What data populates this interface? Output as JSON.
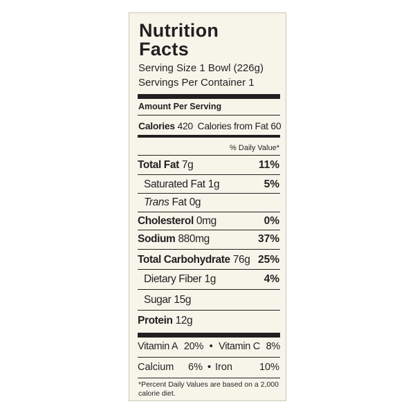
{
  "title_lines": [
    "Nutrition",
    "Facts"
  ],
  "serving_size": {
    "label": "Serving Size",
    "value": "1 Bowl (226g)"
  },
  "servings_per_container": {
    "label": "Servings Per Container",
    "value": "1"
  },
  "amount_per_serving": "Amount Per Serving",
  "calories": {
    "label": "Calories",
    "value": "420"
  },
  "calories_from_fat": {
    "label": "Calories from Fat",
    "value": "60"
  },
  "daily_value_header": "% Daily Value*",
  "nutrients": [
    {
      "name": "Total Fat",
      "amount": "7g",
      "dv": "11%",
      "bold": true,
      "indent": false
    },
    {
      "name": "Saturated Fat",
      "amount": "1g",
      "dv": "5%",
      "bold": false,
      "indent": true
    },
    {
      "italic_prefix": "Trans",
      "name": "Fat",
      "amount": "0g",
      "bold": false,
      "indent": true
    },
    {
      "name": "Cholesterol",
      "amount": "0mg",
      "dv": "0%",
      "bold": true,
      "indent": false
    },
    {
      "name": "Sodium",
      "amount": "880mg",
      "dv": "37%",
      "bold": true,
      "indent": false
    },
    {
      "name": "Total Carbohydrate",
      "amount": "76g",
      "dv": "25%",
      "bold": true,
      "indent": false
    },
    {
      "name": "Dietary Fiber",
      "amount": "1g",
      "dv": "4%",
      "bold": false,
      "indent": true
    },
    {
      "name": "Sugar",
      "amount": "15g",
      "bold": false,
      "indent": true
    },
    {
      "name": "Protein",
      "amount": "12g",
      "bold": true,
      "indent": false
    }
  ],
  "vitamins": [
    [
      {
        "name": "Vitamin A",
        "dv": "20%"
      },
      {
        "name": "Vitamin C",
        "dv": "8%"
      }
    ],
    [
      {
        "name": "Calcium",
        "dv": "6%"
      },
      {
        "name": "Iron",
        "dv": "10%"
      }
    ]
  ],
  "footnote": "*Percent Daily Values are based on a 2,000 calorie diet."
}
